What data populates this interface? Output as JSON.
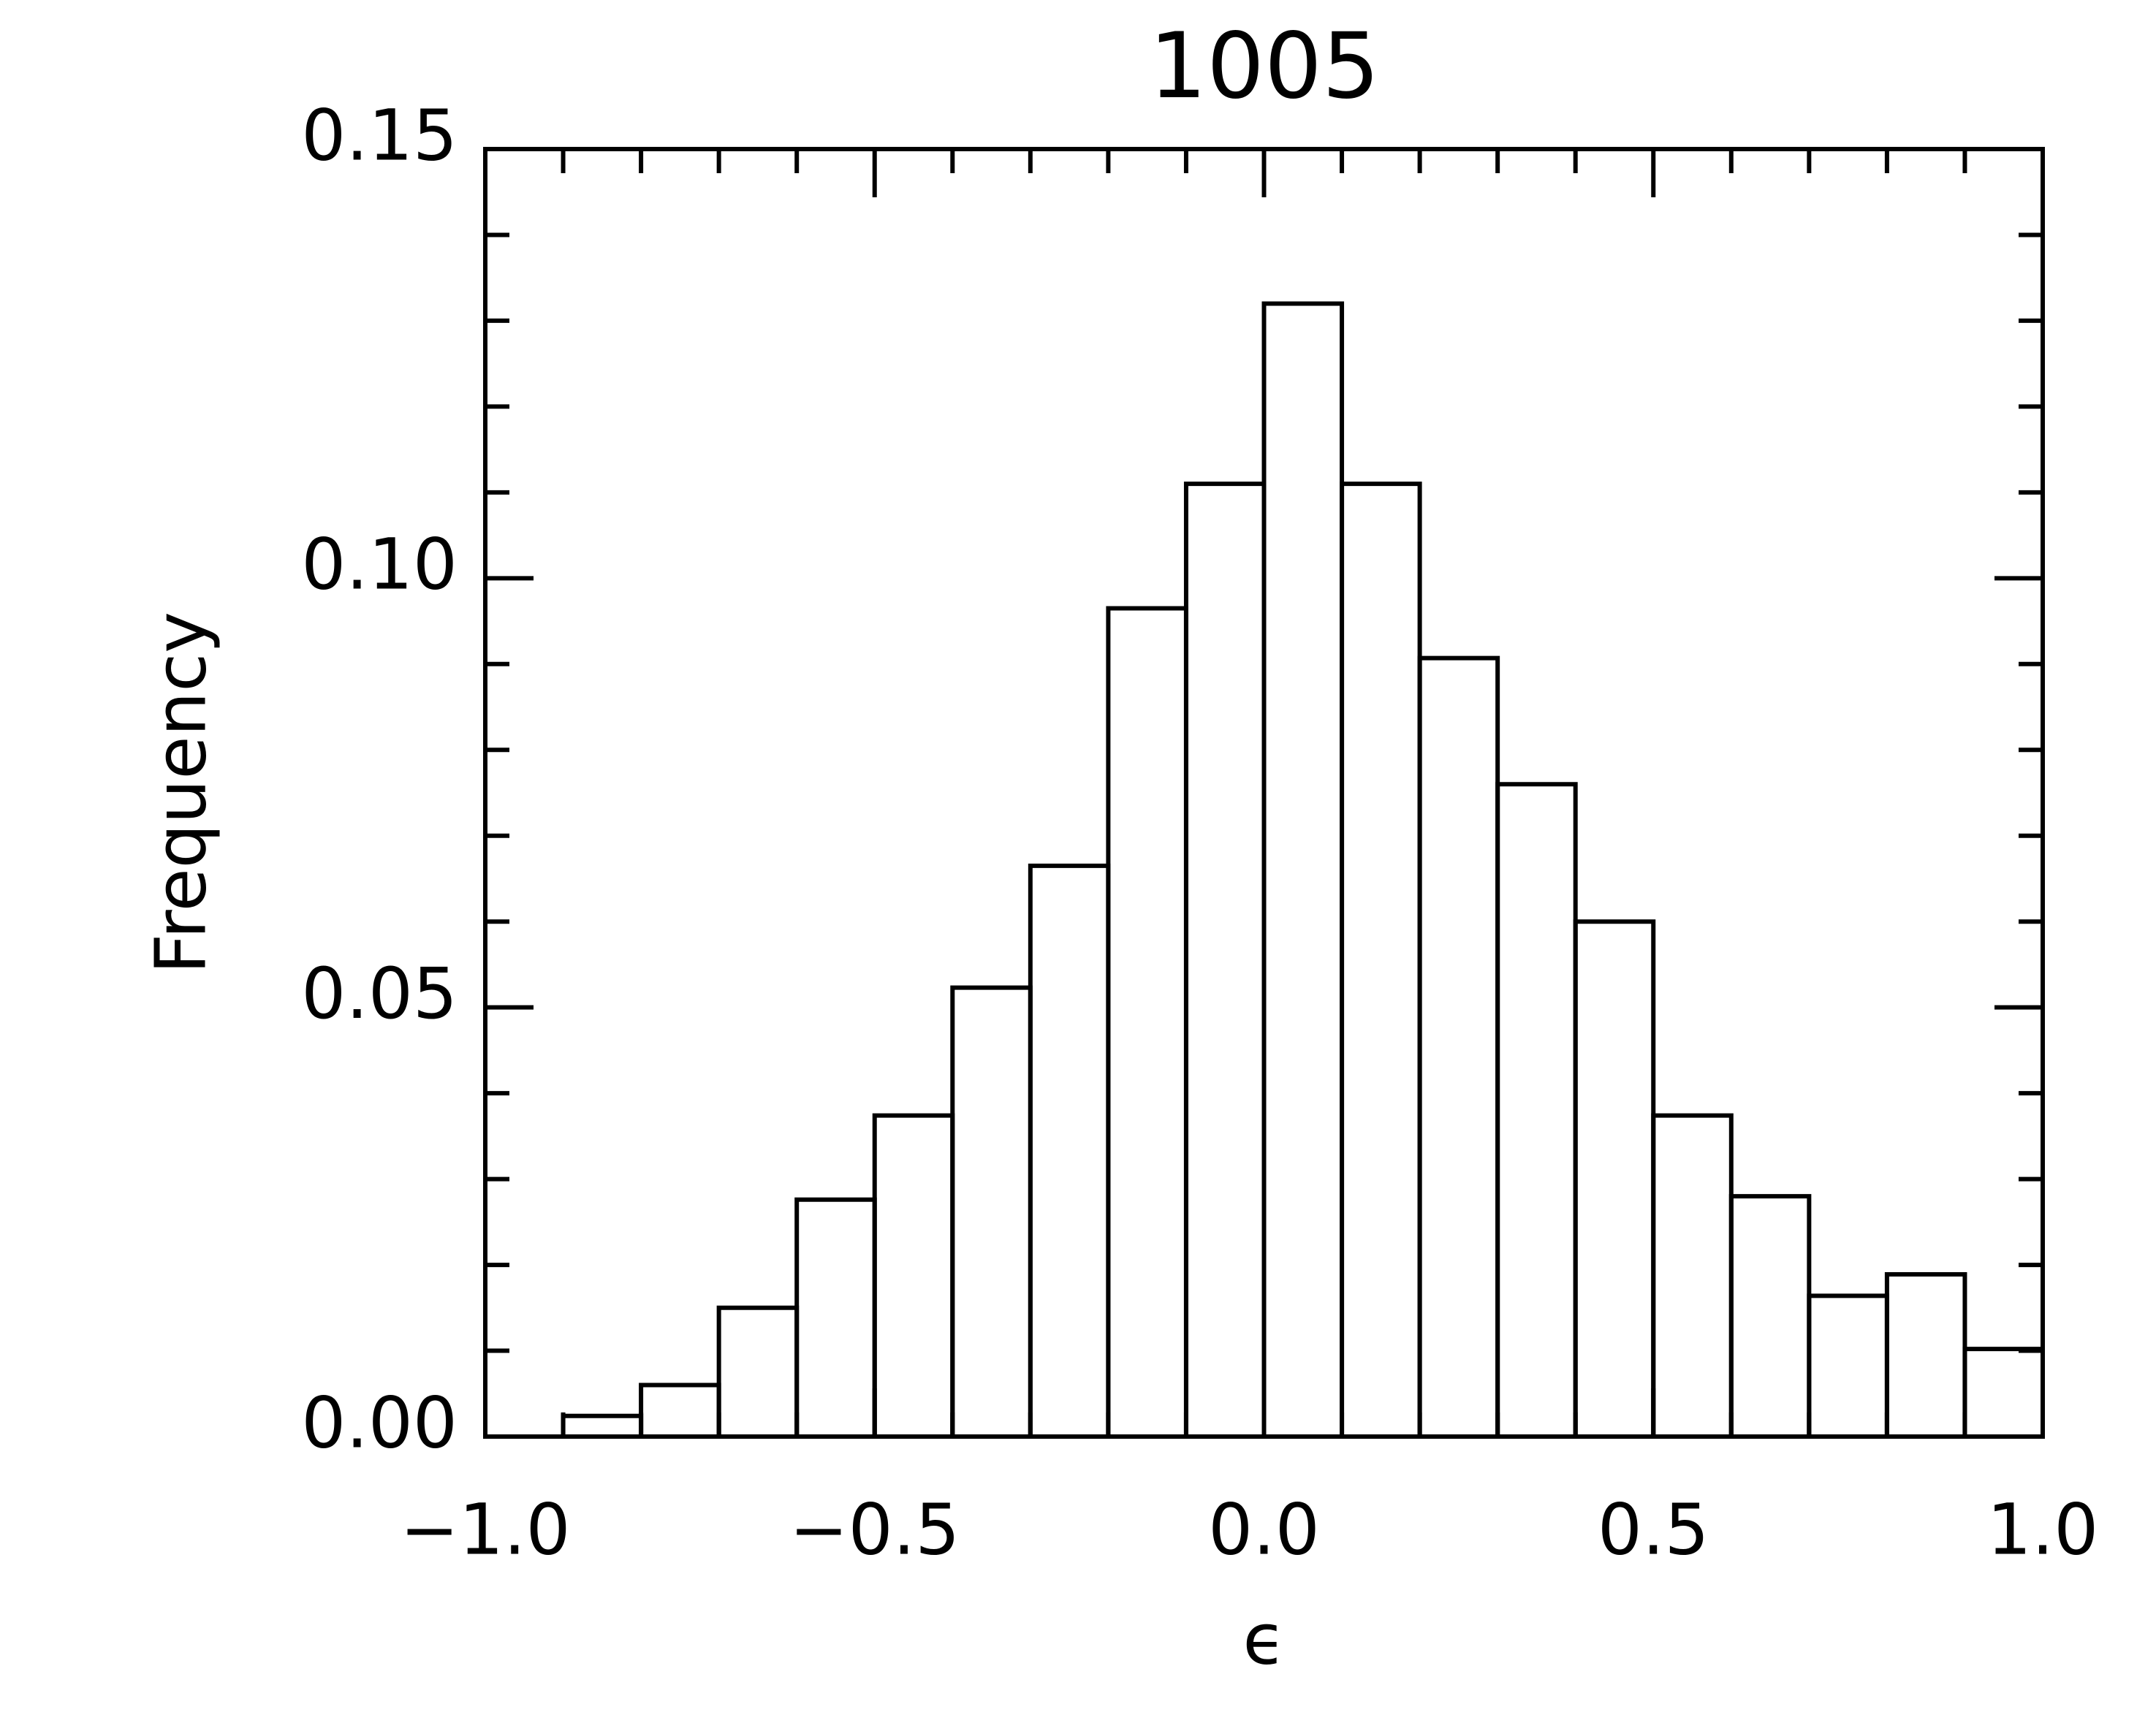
{
  "chart_data": {
    "type": "histogram",
    "title": "1005",
    "xlabel": "ϵ",
    "ylabel": "Frequency",
    "bins": [
      -1.0,
      -0.9,
      -0.8,
      -0.7,
      -0.6,
      -0.5,
      -0.4,
      -0.3,
      -0.2,
      -0.1,
      0.0,
      0.1,
      0.2,
      0.3,
      0.4,
      0.5,
      0.6,
      0.7,
      0.8,
      0.9,
      1.0
    ],
    "values": [
      0,
      0.0024,
      0.006,
      0.015,
      0.0276,
      0.0374,
      0.0523,
      0.0665,
      0.0965,
      0.111,
      0.132,
      0.111,
      0.0907,
      0.076,
      0.06,
      0.0374,
      0.028,
      0.0164,
      0.0189,
      0.0102
    ],
    "color": "#000000",
    "xlim": [
      -1.0,
      1.0
    ],
    "ylim": [
      0,
      0.15
    ],
    "xticks": [
      {
        "value": -1.0,
        "label": "−1.0"
      },
      {
        "value": -0.5,
        "label": "−0.5"
      },
      {
        "value": 0,
        "label": "0.0"
      },
      {
        "value": 0.5,
        "label": "0.5"
      },
      {
        "value": 1.0,
        "label": "1.0"
      }
    ],
    "yticks": [
      {
        "value": 0,
        "label": "0.00"
      },
      {
        "value": 0.05,
        "label": "0.05"
      },
      {
        "value": 0.1,
        "label": "0.10"
      },
      {
        "value": 0.15,
        "label": "0.15"
      }
    ],
    "xminorticks": [
      -0.9,
      -0.8,
      -0.7,
      -0.6,
      -0.4,
      -0.3,
      -0.2,
      -0.1,
      0.1,
      0.2,
      0.3,
      0.4,
      0.6,
      0.7,
      0.8,
      0.9
    ],
    "yminorticks": [
      0.01,
      0.02,
      0.03,
      0.04,
      0.06,
      0.07,
      0.08,
      0.09,
      0.11,
      0.12,
      0.13,
      0.14
    ]
  }
}
